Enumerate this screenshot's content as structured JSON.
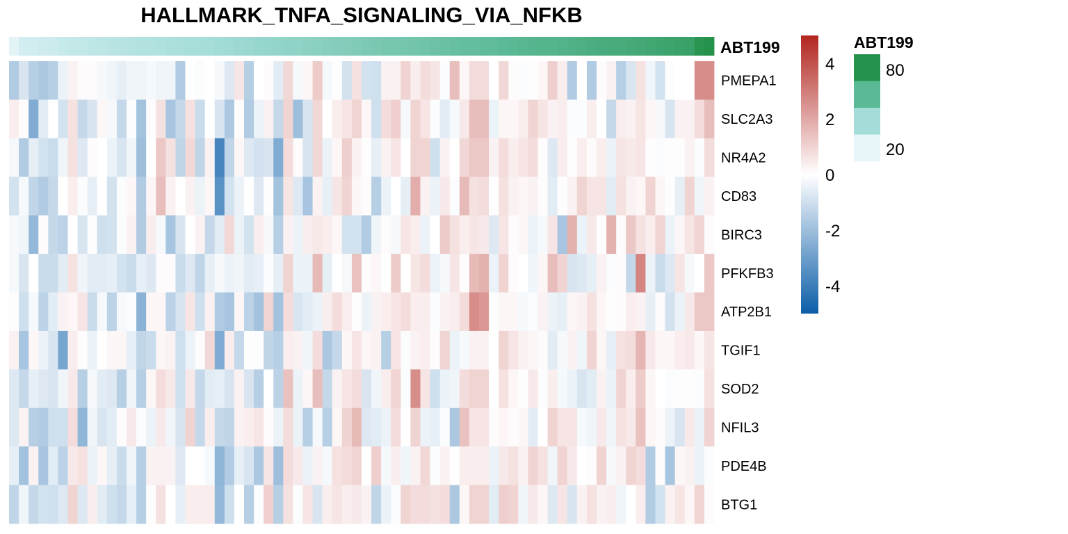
{
  "chart_data": {
    "type": "heatmap",
    "title": "HALLMARK_TNFA_SIGNALING_VIA_NFKB",
    "rows": [
      "PMEPA1",
      "SLC2A3",
      "NR4A2",
      "CD83",
      "BIRC3",
      "PFKFB3",
      "ATP2B1",
      "TGIF1",
      "SOD2",
      "NFIL3",
      "PDE4B",
      "BTG1"
    ],
    "n_columns": 72,
    "values": [
      [
        -1.6,
        -0.8,
        -1.5,
        -1.7,
        -1.5,
        -0.4,
        0.3,
        0.1,
        0.1,
        -0.2,
        -0.3,
        -0.5,
        -0.3,
        -0.3,
        -0.2,
        -0.3,
        -0.3,
        -1.6,
        0,
        -0.1,
        0,
        -0.2,
        -0.7,
        0.6,
        -1.5,
        0,
        0.1,
        -0.6,
        0.9,
        -0.2,
        0.2,
        1.2,
        -0.2,
        0.05,
        -0.9,
        0.7,
        -0.9,
        -1.0,
        0.3,
        0.3,
        1.0,
        0.4,
        0.8,
        0.6,
        -0.1,
        1.5,
        0.2,
        0.8,
        0.8,
        0,
        0.9,
        0.1,
        -0.1,
        0.05,
        0.2,
        1.1,
        0.4,
        -1.6,
        0,
        -1.6,
        0.1,
        0.3,
        -1.5,
        -0.8,
        0.7,
        -0.3,
        -0.9,
        -0.05,
        0,
        0,
        2.6,
        2.6
      ],
      [
        0.4,
        0.1,
        -2.6,
        -0.6,
        0,
        -0.9,
        0.7,
        -1.2,
        -0.8,
        0.2,
        -0.2,
        -1.2,
        -0.1,
        -1.9,
        0.1,
        0.7,
        -1.8,
        -1.2,
        0.7,
        -1.1,
        0,
        -0.8,
        -1.7,
        0.1,
        -1.6,
        -0.4,
        0.3,
        -1.2,
        1.0,
        -2.0,
        -0.8,
        0.9,
        0,
        0.4,
        0.6,
        1.0,
        0.2,
        -1.0,
        0.8,
        1.1,
        -0.2,
        1.0,
        0.6,
        -0.1,
        -0.6,
        -0.2,
        0.5,
        1.5,
        1.5,
        -0.4,
        0.2,
        0.2,
        0.4,
        1.0,
        0.6,
        0.3,
        0.4,
        -0.1,
        -0.1,
        0.4,
        0,
        -1.2,
        0.4,
        0.3,
        0.6,
        0.2,
        -0.2,
        -0.8,
        0.3,
        0.3,
        0.8,
        1.5
      ],
      [
        -0.2,
        -1.6,
        -0.5,
        -0.9,
        -1.1,
        -0.3,
        0.7,
        -0.7,
        0.1,
        0,
        -0.4,
        -0.8,
        -0.3,
        -2.0,
        0,
        1.3,
        0.7,
        -1.3,
        0.9,
        -1.3,
        0.3,
        -3.8,
        -1.3,
        0.2,
        -0.7,
        -0.9,
        -0.8,
        -2.6,
        0.8,
        0.1,
        -0.8,
        0.9,
        -0.4,
        0.2,
        1.1,
        0.3,
        -0.05,
        -0.5,
        0.3,
        0.6,
        0,
        1.0,
        1.0,
        -1.0,
        0.3,
        0,
        0.9,
        1.3,
        1.3,
        0.3,
        0.8,
        0.4,
        0.6,
        0.8,
        0.1,
        -0.7,
        0.4,
        0.05,
        0.4,
        0.1,
        0.4,
        -0.4,
        0.6,
        0.5,
        0.6,
        -0.05,
        -0.1,
        0.05,
        0.05,
        0.3,
        -0.1,
        0.8
      ],
      [
        -0.9,
        -0.2,
        -1.3,
        -1.6,
        -1.2,
        0,
        0.4,
        -0.1,
        -0.5,
        0,
        -0.9,
        -0.1,
        0.2,
        -1.6,
        0.2,
        1.5,
        0.3,
        0,
        0.3,
        -0.4,
        0.2,
        -3.4,
        -0.9,
        -0.4,
        0,
        -0.7,
        0.05,
        -1.9,
        0.6,
        -0.7,
        -1.8,
        0.3,
        -0.5,
        0.6,
        1.0,
        0.2,
        0.1,
        -1.5,
        -0.4,
        0,
        -0.5,
        1.9,
        0.3,
        -0.4,
        0.5,
        -0.1,
        1.6,
        0.7,
        0.8,
        0.05,
        0.7,
        0.3,
        0.2,
        0.3,
        0.1,
        -0.6,
        0.05,
        0.3,
        1.0,
        0.6,
        0.6,
        -0.6,
        0.7,
        0.3,
        0.2,
        1.0,
        0.2,
        0.05,
        -0.5,
        1.0,
        -0.3,
        0.3
      ],
      [
        -0.2,
        -0.3,
        -2.2,
        0.1,
        -1.2,
        -1.4,
        0,
        -0.8,
        0.05,
        -1.0,
        -0.9,
        -0.1,
        0.3,
        -1.6,
        0.4,
        -0.2,
        -1.8,
        -0.8,
        0,
        0.3,
        -1.2,
        -0.6,
        0.9,
        -0.4,
        -0.9,
        0.4,
        -0.2,
        -1.5,
        0.3,
        -0.4,
        0.4,
        0.5,
        0.4,
        0.2,
        -0.9,
        -0.9,
        -1.6,
        -0.3,
        0.1,
        -0.2,
        0.6,
        0.4,
        -0.4,
        0,
        1.2,
        0.7,
        0.4,
        0.6,
        0.5,
        -0.7,
        0.6,
        0.1,
        0.2,
        -0.4,
        -0.2,
        0.6,
        -1.8,
        1.8,
        -0.4,
        0.5,
        0.05,
        1.8,
        0.1,
        1.3,
        0.7,
        0.4,
        1.0,
        -0.4,
        0.2,
        0.6,
        1.0,
        0.1
      ],
      [
        -0.2,
        -0.8,
        0,
        -1.1,
        -1.1,
        -0.6,
        0.7,
        -0.3,
        -0.6,
        -0.6,
        -0.5,
        -0.9,
        -1.1,
        -0.5,
        -0.7,
        0.1,
        0.1,
        -1.1,
        -0.7,
        -1.3,
        -0.5,
        -0.2,
        -0.4,
        -0.3,
        -0.6,
        -0.5,
        -0.1,
        -0.5,
        1.0,
        -0.4,
        -0.4,
        1.6,
        -0.5,
        0,
        -0.2,
        1.4,
        0.1,
        0.2,
        0,
        1.2,
        0,
        0.6,
        0.8,
        -0.4,
        -0.2,
        0.6,
        0.1,
        1.6,
        1.8,
        -0.4,
        1.0,
        0.1,
        0,
        -0.3,
        0.2,
        1.5,
        1.0,
        -0.8,
        -0.7,
        -0.5,
        0.3,
        -0.1,
        0.1,
        -1.2,
        2.8,
        -0.4,
        -1.1,
        -0.7,
        0.6,
        -0.2,
        0,
        1.3
      ],
      [
        0.05,
        -1.0,
        -0.2,
        -1.4,
        -0.6,
        0.3,
        0.2,
        0.6,
        -1.1,
        -0.2,
        -1.4,
        -0.2,
        -0.1,
        -2.4,
        0.2,
        0.2,
        -1.4,
        -0.8,
        0.6,
        -1.0,
        0.3,
        -1.6,
        -1.8,
        0.2,
        -1.4,
        -1.9,
        1.0,
        -1.9,
        0.8,
        -0.8,
        -0.6,
        -0.4,
        0.4,
        0.8,
        0.4,
        0.05,
        -0.4,
        0.3,
        0.4,
        0.6,
        0.8,
        0.4,
        0.4,
        -0.1,
        0.3,
        0.4,
        0.8,
        2.6,
        2.4,
        0.05,
        0.2,
        0.2,
        -0.2,
        -0.1,
        0.3,
        -0.4,
        -0.5,
        0.2,
        0.3,
        0.7,
        0.2,
        0.05,
        0.1,
        0.4,
        0.3,
        -0.5,
        0.1,
        -0.9,
        -0.4,
        0.5,
        1.3,
        1.3
      ],
      [
        0.3,
        -1.8,
        0.2,
        -0.4,
        -0.8,
        -2.8,
        0.4,
        0.1,
        -0.4,
        0,
        0.2,
        0.2,
        -0.5,
        -1.3,
        -1.1,
        0.2,
        0.3,
        -1.0,
        -0.4,
        0.1,
        0.9,
        -2.6,
        0.4,
        -1.2,
        0.05,
        -0.1,
        -1.3,
        -1.5,
        0.4,
        0.3,
        -0.3,
        0.8,
        -1.7,
        -1.2,
        0.2,
        0.6,
        0.2,
        0.3,
        -1.5,
        0.6,
        -0.1,
        0.3,
        0.4,
        0.1,
        1.0,
        -0.4,
        -0.2,
        0.3,
        0.3,
        0,
        1.0,
        0.6,
        0.3,
        0.2,
        0.1,
        -0.6,
        -0.2,
        0.3,
        -0.3,
        1.0,
        0.2,
        -0.5,
        0.7,
        0.8,
        1.7,
        0.5,
        0.2,
        0.2,
        0.4,
        0.5,
        0.2,
        0.6
      ],
      [
        -0.7,
        -1.2,
        -0.5,
        -0.7,
        -0.8,
        -0.3,
        0.5,
        -1.5,
        -0.2,
        -0.6,
        -0.7,
        -1.5,
        -0.3,
        -1.5,
        0.2,
        0.8,
        0.5,
        -1.0,
        0.5,
        -1.2,
        -0.6,
        -0.5,
        -0.8,
        0.3,
        -0.8,
        -1.5,
        0,
        -1.4,
        1.4,
        -0.4,
        0.2,
        1.5,
        -1.2,
        0.3,
        0.6,
        0.8,
        -0.8,
        -0.3,
        0.4,
        1.0,
        -0.1,
        2.6,
        0.6,
        -1.0,
        -0.4,
        -0.3,
        0.8,
        1.0,
        1.0,
        0,
        0.7,
        0.2,
        0.05,
        0.5,
        -0.1,
        0.4,
        -0.2,
        -0.4,
        -0.8,
        -0.6,
        0.3,
        -0.4,
        1.0,
        0.4,
        1.2,
        0.2,
        0,
        -0.1,
        0.05,
        0.05,
        -0.1,
        0.7
      ],
      [
        -0.7,
        0.3,
        -1.5,
        -1.6,
        -1.0,
        -1.0,
        0.8,
        -2.3,
        -0.3,
        -0.8,
        -0.6,
        0.1,
        0.5,
        -0.1,
        -0.4,
        0.5,
        -0.3,
        -0.8,
        1.0,
        -1.2,
        0.4,
        -1.2,
        -1.3,
        0.3,
        0.4,
        0.6,
        0.1,
        -0.4,
        0.8,
        -0.4,
        -1.5,
        -0.2,
        -1.5,
        0.2,
        1.0,
        1.6,
        -0.7,
        -0.6,
        -0.4,
        0.8,
        0,
        1.0,
        -0.4,
        -0.5,
        -0.1,
        -1.7,
        1.4,
        0.6,
        0.6,
        0.1,
        0.2,
        0.1,
        0.2,
        -0.6,
        0,
        1.0,
        0.6,
        0.6,
        -0.2,
        -0.3,
        0.5,
        -0.3,
        0.7,
        0.5,
        1.4,
        0.2,
        0.1,
        -0.4,
        -0.8,
        0.5,
        -0.4,
        1.0
      ],
      [
        -0.5,
        -1.9,
        0.3,
        -1.8,
        -0.6,
        -1.4,
        0.5,
        0.7,
        -0.4,
        0.2,
        -0.5,
        -1.1,
        -0.3,
        -1.5,
        0.3,
        0.3,
        0.3,
        -0.7,
        0,
        0,
        -0.2,
        -2.3,
        -1.6,
        -0.5,
        -0.8,
        -1.7,
        0.6,
        -2.0,
        0.8,
        0.5,
        -0.4,
        0.3,
        -0.2,
        0.7,
        0.8,
        1.0,
        0,
        1.1,
        -0.2,
        0.4,
        -0.3,
        0.3,
        0.9,
        -0.1,
        0.3,
        0.05,
        0.4,
        0.4,
        0.4,
        -0.4,
        0.5,
        0.7,
        0.3,
        1.0,
        0.7,
        -0.3,
        1.0,
        0.5,
        0,
        0.1,
        1.0,
        -0.2,
        0.3,
        1.0,
        0.8,
        -1.6,
        0.1,
        -1.8,
        0.2,
        0.3,
        -0.4,
        -0.1
      ],
      [
        -1.3,
        -0.3,
        -1.2,
        -0.9,
        -1.0,
        -0.7,
        1.0,
        -0.7,
        0.4,
        -0.6,
        -1.0,
        -1.2,
        -0.5,
        -1.5,
        0.05,
        0.7,
        0,
        -0.5,
        0.4,
        0.4,
        0.4,
        -2.2,
        -1.0,
        0,
        -1.5,
        -0.1,
        1.1,
        -1.5,
        0.7,
        -0.1,
        0.6,
        -0.8,
        0.4,
        0.6,
        0.4,
        0.5,
        0.3,
        -1.3,
        -0.4,
        -0.1,
        1.0,
        0.8,
        0.8,
        0.7,
        0.8,
        -1.7,
        0.2,
        1.0,
        1.0,
        -0.6,
        1.1,
        1.0,
        -0.3,
        0.5,
        0.2,
        -0.7,
        0.6,
        -0.8,
        0.3,
        0.7,
        0.3,
        0.4,
        -0.3,
        0,
        0.4,
        -1.6,
        -0.9,
        0.3,
        0.6,
        0.2,
        1.0,
        0.1
      ]
    ],
    "color_scale": {
      "range": [
        -5,
        5
      ],
      "ticks": [
        "4",
        "2",
        "0",
        "-2",
        "-4"
      ],
      "tick_values": [
        4,
        2,
        0,
        -2,
        -4
      ],
      "low": "#0b5ea8",
      "mid": "#ffffff",
      "high": "#b2261f"
    },
    "annotation": {
      "name": "ABT199",
      "values": [
        12,
        18,
        19,
        20,
        21,
        23,
        24,
        25,
        26,
        27,
        28,
        29,
        30,
        31,
        31,
        32,
        33,
        34,
        35,
        35,
        36,
        37,
        38,
        39,
        40,
        41,
        42,
        43,
        44,
        44,
        45,
        46,
        47,
        48,
        49,
        50,
        51,
        52,
        53,
        53,
        54,
        55,
        56,
        57,
        58,
        59,
        60,
        60,
        61,
        62,
        63,
        64,
        65,
        66,
        67,
        67,
        68,
        69,
        70,
        71,
        72,
        73,
        73,
        74,
        75,
        76,
        77,
        78,
        79,
        80,
        88,
        90
      ],
      "range": [
        10,
        90
      ],
      "colors": [
        "#e8f6fa",
        "#a3dcd8",
        "#5bb996",
        "#25924b"
      ],
      "legend_title": "ABT199",
      "legend_ticks": [
        "80",
        "20"
      ]
    }
  }
}
